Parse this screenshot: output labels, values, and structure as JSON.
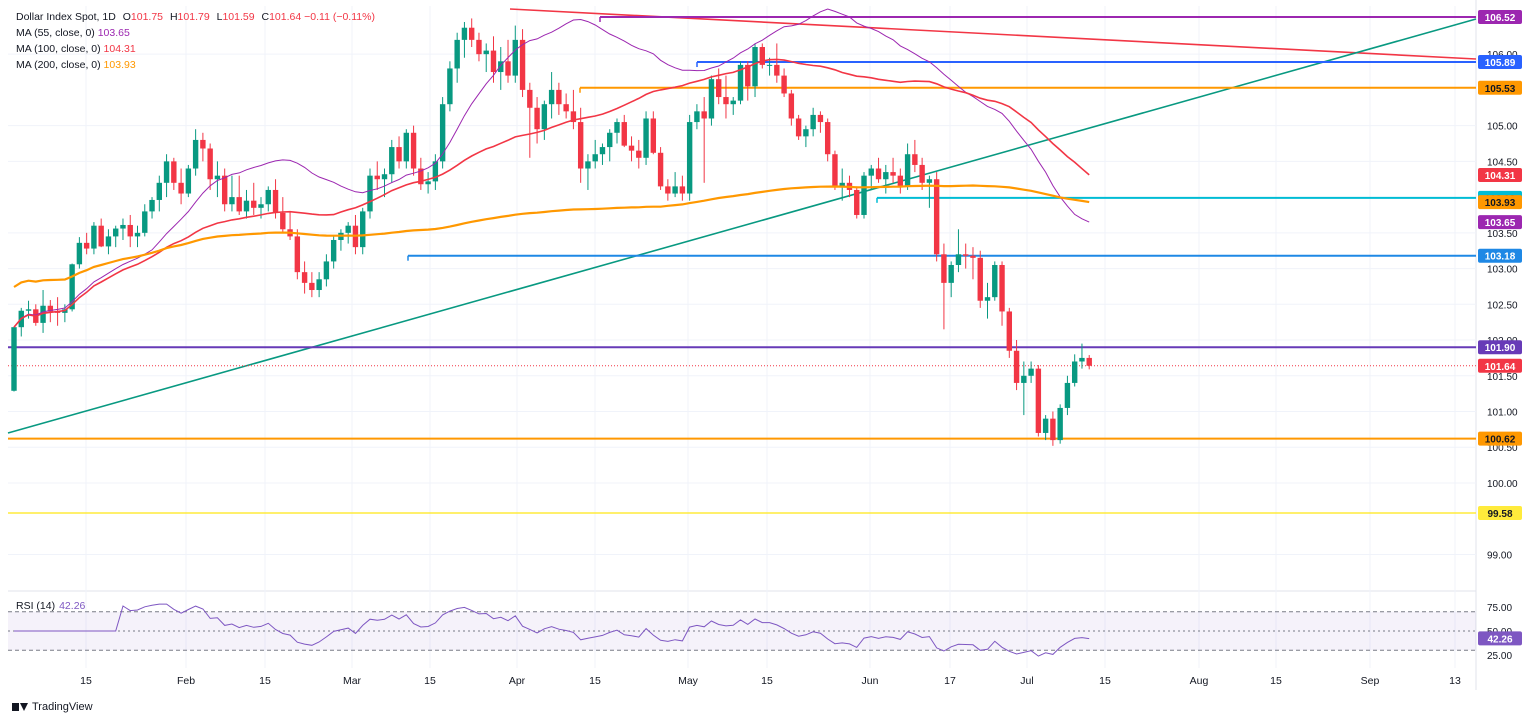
{
  "legend": {
    "symbol": "Dollar Index Spot, 1D",
    "open_label": "O",
    "open": "101.75",
    "high_label": "H",
    "high": "101.79",
    "low_label": "L",
    "low": "101.59",
    "close_label": "C",
    "close": "101.64",
    "change": "−0.11 (−0.11%)",
    "ma55": {
      "label": "MA (55, close, 0)",
      "value": "103.65",
      "color": "#9c27b0"
    },
    "ma100": {
      "label": "MA (100, close, 0)",
      "value": "104.31",
      "color": "#f23645"
    },
    "ma200": {
      "label": "MA (200, close, 0)",
      "value": "103.93",
      "color": "#ff9800"
    }
  },
  "rsi": {
    "label": "RSI (14)",
    "value": "42.26",
    "color": "#7e57c2"
  },
  "footer": {
    "brand": "TradingView"
  },
  "colors": {
    "up": "#089981",
    "down": "#f23645",
    "grid": "#f0f3fa",
    "axis_text": "#131722"
  },
  "chart_data": {
    "type": "candlestick",
    "title": "Dollar Index Spot, 1D",
    "ylim": [
      98.4,
      106.8
    ],
    "y_ticks": [
      "99.00",
      "100.00",
      "100.50",
      "101.00",
      "101.50",
      "102.00",
      "102.50",
      "103.00",
      "103.50",
      "104.50",
      "105.00",
      "106.00"
    ],
    "x_ticks": [
      "15",
      "Feb",
      "15",
      "Mar",
      "15",
      "Apr",
      "15",
      "May",
      "15",
      "Jun",
      "17",
      "Jul",
      "15",
      "Aug",
      "15",
      "Sep",
      "13"
    ],
    "date_range": [
      "2024-01-02",
      "2024-09-04"
    ],
    "candles_ohlc": [
      [
        101.29,
        102.18,
        101.28,
        102.18
      ],
      [
        102.18,
        102.45,
        102.05,
        102.41
      ],
      [
        102.41,
        102.55,
        102.3,
        102.43
      ],
      [
        102.43,
        102.5,
        102.2,
        102.24
      ],
      [
        102.24,
        102.7,
        102.1,
        102.48
      ],
      [
        102.48,
        102.56,
        102.25,
        102.4
      ],
      [
        102.4,
        102.6,
        102.2,
        102.38
      ],
      [
        102.38,
        102.5,
        102.25,
        102.43
      ],
      [
        102.43,
        103.07,
        102.4,
        103.06
      ],
      [
        103.06,
        103.44,
        103.0,
        103.36
      ],
      [
        103.36,
        103.5,
        103.2,
        103.28
      ],
      [
        103.28,
        103.65,
        103.2,
        103.6
      ],
      [
        103.6,
        103.7,
        103.3,
        103.31
      ],
      [
        103.31,
        103.55,
        103.2,
        103.45
      ],
      [
        103.45,
        103.6,
        103.3,
        103.56
      ],
      [
        103.56,
        103.7,
        103.4,
        103.61
      ],
      [
        103.61,
        103.75,
        103.3,
        103.45
      ],
      [
        103.45,
        103.6,
        103.3,
        103.5
      ],
      [
        103.5,
        103.9,
        103.45,
        103.8
      ],
      [
        103.8,
        104.0,
        103.7,
        103.96
      ],
      [
        103.96,
        104.3,
        103.8,
        104.2
      ],
      [
        104.2,
        104.6,
        104.0,
        104.5
      ],
      [
        104.5,
        104.55,
        104.1,
        104.2
      ],
      [
        104.2,
        104.4,
        103.9,
        104.05
      ],
      [
        104.05,
        104.45,
        104.0,
        104.4
      ],
      [
        104.4,
        104.95,
        104.3,
        104.8
      ],
      [
        104.8,
        104.9,
        104.5,
        104.68
      ],
      [
        104.68,
        104.75,
        104.1,
        104.25
      ],
      [
        104.25,
        104.5,
        104.0,
        104.3
      ],
      [
        104.3,
        104.4,
        103.8,
        103.9
      ],
      [
        103.9,
        104.3,
        103.8,
        104.0
      ],
      [
        104.0,
        104.3,
        103.75,
        103.8
      ],
      [
        103.8,
        104.1,
        103.7,
        103.95
      ],
      [
        103.95,
        104.2,
        103.75,
        103.85
      ],
      [
        103.85,
        104.0,
        103.7,
        103.9
      ],
      [
        103.9,
        104.15,
        103.8,
        104.1
      ],
      [
        104.1,
        104.25,
        103.7,
        103.78
      ],
      [
        103.78,
        104.0,
        103.5,
        103.55
      ],
      [
        103.55,
        103.8,
        103.4,
        103.45
      ],
      [
        103.45,
        103.55,
        102.85,
        102.95
      ],
      [
        102.95,
        103.1,
        102.65,
        102.8
      ],
      [
        102.8,
        102.95,
        102.6,
        102.7
      ],
      [
        102.7,
        102.95,
        102.6,
        102.85
      ],
      [
        102.85,
        103.2,
        102.75,
        103.1
      ],
      [
        103.1,
        103.45,
        103.0,
        103.4
      ],
      [
        103.4,
        103.55,
        103.25,
        103.5
      ],
      [
        103.5,
        103.65,
        103.35,
        103.6
      ],
      [
        103.6,
        103.75,
        103.2,
        103.3
      ],
      [
        103.3,
        103.85,
        103.2,
        103.8
      ],
      [
        103.8,
        104.4,
        103.7,
        104.3
      ],
      [
        104.3,
        104.5,
        104.1,
        104.25
      ],
      [
        104.25,
        104.4,
        104.0,
        104.32
      ],
      [
        104.32,
        104.8,
        104.2,
        104.7
      ],
      [
        104.7,
        104.85,
        104.4,
        104.5
      ],
      [
        104.5,
        104.95,
        104.4,
        104.9
      ],
      [
        104.9,
        105.0,
        104.3,
        104.4
      ],
      [
        104.4,
        104.55,
        104.1,
        104.18
      ],
      [
        104.18,
        104.35,
        104.05,
        104.22
      ],
      [
        104.22,
        104.6,
        104.1,
        104.5
      ],
      [
        104.5,
        105.4,
        104.4,
        105.3
      ],
      [
        105.3,
        105.9,
        105.2,
        105.8
      ],
      [
        105.8,
        106.3,
        105.6,
        106.2
      ],
      [
        106.2,
        106.45,
        105.95,
        106.37
      ],
      [
        106.37,
        106.5,
        106.1,
        106.2
      ],
      [
        106.2,
        106.3,
        105.9,
        106.0
      ],
      [
        106.0,
        106.15,
        105.75,
        106.05
      ],
      [
        106.05,
        106.25,
        105.6,
        105.75
      ],
      [
        105.75,
        106.1,
        105.5,
        105.9
      ],
      [
        105.9,
        106.2,
        105.6,
        105.7
      ],
      [
        105.7,
        106.4,
        105.6,
        106.2
      ],
      [
        106.2,
        106.35,
        105.4,
        105.5
      ],
      [
        105.5,
        105.6,
        104.55,
        105.25
      ],
      [
        105.25,
        105.4,
        104.75,
        104.95
      ],
      [
        104.95,
        105.35,
        104.8,
        105.3
      ],
      [
        105.3,
        105.75,
        105.1,
        105.5
      ],
      [
        105.5,
        105.6,
        105.15,
        105.3
      ],
      [
        105.3,
        105.45,
        105.1,
        105.2
      ],
      [
        105.2,
        105.5,
        104.95,
        105.05
      ],
      [
        105.05,
        105.25,
        104.2,
        104.4
      ],
      [
        104.4,
        104.6,
        104.1,
        104.5
      ],
      [
        104.5,
        104.8,
        104.4,
        104.6
      ],
      [
        104.6,
        104.75,
        104.45,
        104.7
      ],
      [
        104.7,
        104.95,
        104.5,
        104.9
      ],
      [
        104.9,
        105.1,
        104.75,
        105.05
      ],
      [
        105.05,
        105.15,
        104.7,
        104.72
      ],
      [
        104.72,
        104.85,
        104.5,
        104.65
      ],
      [
        104.65,
        104.8,
        104.4,
        104.55
      ],
      [
        104.55,
        105.2,
        104.45,
        105.1
      ],
      [
        105.1,
        105.2,
        104.6,
        104.62
      ],
      [
        104.62,
        104.7,
        104.1,
        104.15
      ],
      [
        104.15,
        104.25,
        103.95,
        104.05
      ],
      [
        104.05,
        104.35,
        104.0,
        104.15
      ],
      [
        104.15,
        104.3,
        103.95,
        104.05
      ],
      [
        104.05,
        105.15,
        103.95,
        105.05
      ],
      [
        105.05,
        105.3,
        104.95,
        105.2
      ],
      [
        105.2,
        105.4,
        104.2,
        105.1
      ],
      [
        105.1,
        105.7,
        105.0,
        105.65
      ],
      [
        105.65,
        105.8,
        105.3,
        105.4
      ],
      [
        105.4,
        105.7,
        105.1,
        105.3
      ],
      [
        105.3,
        105.4,
        105.15,
        105.35
      ],
      [
        105.35,
        105.9,
        105.3,
        105.85
      ],
      [
        105.85,
        105.9,
        105.35,
        105.55
      ],
      [
        105.55,
        106.15,
        105.4,
        106.1
      ],
      [
        106.1,
        106.15,
        105.8,
        105.85
      ],
      [
        105.85,
        105.95,
        105.7,
        105.85
      ],
      [
        105.85,
        106.15,
        105.6,
        105.7
      ],
      [
        105.7,
        105.8,
        105.4,
        105.45
      ],
      [
        105.45,
        105.5,
        105.0,
        105.1
      ],
      [
        105.1,
        105.15,
        104.8,
        104.85
      ],
      [
        104.85,
        105.0,
        104.7,
        104.95
      ],
      [
        104.95,
        105.25,
        104.85,
        105.15
      ],
      [
        105.15,
        105.2,
        104.9,
        105.05
      ],
      [
        105.05,
        105.1,
        104.5,
        104.6
      ],
      [
        104.6,
        104.65,
        104.1,
        104.15
      ],
      [
        104.15,
        104.4,
        103.95,
        104.2
      ],
      [
        104.2,
        104.3,
        104.0,
        104.1
      ],
      [
        104.1,
        104.15,
        103.7,
        103.75
      ],
      [
        103.75,
        104.35,
        103.7,
        104.3
      ],
      [
        104.3,
        104.45,
        104.1,
        104.4
      ],
      [
        104.4,
        104.55,
        104.2,
        104.25
      ],
      [
        104.25,
        104.45,
        104.05,
        104.35
      ],
      [
        104.35,
        104.55,
        104.2,
        104.3
      ],
      [
        104.3,
        104.4,
        104.05,
        104.15
      ],
      [
        104.15,
        104.75,
        104.1,
        104.6
      ],
      [
        104.6,
        104.8,
        104.35,
        104.45
      ],
      [
        104.45,
        104.55,
        104.1,
        104.2
      ],
      [
        104.2,
        104.3,
        103.85,
        104.25
      ],
      [
        104.25,
        104.35,
        103.1,
        103.2
      ],
      [
        103.2,
        103.35,
        102.15,
        102.8
      ],
      [
        102.8,
        103.1,
        102.6,
        103.05
      ],
      [
        103.05,
        103.55,
        102.95,
        103.2
      ],
      [
        103.2,
        103.35,
        103.0,
        103.18
      ],
      [
        103.18,
        103.3,
        102.85,
        103.15
      ],
      [
        103.15,
        103.25,
        102.45,
        102.55
      ],
      [
        102.55,
        102.8,
        102.3,
        102.6
      ],
      [
        102.6,
        103.1,
        102.55,
        103.05
      ],
      [
        103.05,
        103.1,
        102.2,
        102.4
      ],
      [
        102.4,
        102.45,
        101.75,
        101.85
      ],
      [
        101.85,
        102.0,
        101.3,
        101.4
      ],
      [
        101.4,
        101.7,
        100.95,
        101.5
      ],
      [
        101.5,
        101.7,
        101.4,
        101.6
      ],
      [
        101.6,
        101.65,
        100.65,
        100.7
      ],
      [
        100.7,
        100.95,
        100.6,
        100.9
      ],
      [
        100.9,
        101.0,
        100.52,
        100.6
      ],
      [
        100.6,
        101.1,
        100.55,
        101.05
      ],
      [
        101.05,
        101.5,
        100.95,
        101.4
      ],
      [
        101.4,
        101.8,
        101.35,
        101.7
      ],
      [
        101.7,
        101.95,
        101.6,
        101.75
      ],
      [
        101.75,
        101.79,
        101.59,
        101.64
      ]
    ],
    "moving_averages": [
      {
        "name": "MA (55, close, 0)",
        "value": 103.65,
        "color": "#9c27b0"
      },
      {
        "name": "MA (100, close, 0)",
        "value": 104.31,
        "color": "#f23645"
      },
      {
        "name": "MA (200, close, 0)",
        "value": 103.93,
        "color": "#ff9800"
      }
    ],
    "horizontal_levels": [
      {
        "value": 106.52,
        "color": "#9c27b0",
        "label": "106.52"
      },
      {
        "value": 105.89,
        "color": "#2962ff",
        "label": "105.89"
      },
      {
        "value": 105.53,
        "color": "#ff9800",
        "label": "105.53"
      },
      {
        "value": 103.99,
        "color": "#00bcd4",
        "label": "103.99"
      },
      {
        "value": 103.18,
        "color": "#1e88e5",
        "label": "103.18"
      },
      {
        "value": 101.9,
        "color": "#673ab7",
        "label": "101.90"
      },
      {
        "value": 100.62,
        "color": "#ff9800",
        "label": "100.62"
      },
      {
        "value": 99.58,
        "color": "#ffeb3b",
        "label": "99.58"
      }
    ],
    "price_tags": [
      {
        "value": 106.52,
        "label": "106.52",
        "bg": "#9c27b0",
        "fg": "#ffffff"
      },
      {
        "value": 105.89,
        "label": "105.89",
        "bg": "#2962ff",
        "fg": "#ffffff"
      },
      {
        "value": 105.53,
        "label": "105.53",
        "bg": "#ff9800",
        "fg": "#131722"
      },
      {
        "value": 104.31,
        "label": "104.31",
        "bg": "#f23645",
        "fg": "#ffffff"
      },
      {
        "value": 103.99,
        "label": "103.99",
        "bg": "#00bcd4",
        "fg": "#131722"
      },
      {
        "value": 103.93,
        "label": "103.93",
        "bg": "#ff9800",
        "fg": "#131722"
      },
      {
        "value": 103.65,
        "label": "103.65",
        "bg": "#9c27b0",
        "fg": "#ffffff"
      },
      {
        "value": 103.18,
        "label": "103.18",
        "bg": "#1e88e5",
        "fg": "#ffffff"
      },
      {
        "value": 101.9,
        "label": "101.90",
        "bg": "#673ab7",
        "fg": "#ffffff"
      },
      {
        "value": 101.64,
        "label": "101.64",
        "bg": "#f23645",
        "fg": "#ffffff"
      },
      {
        "value": 100.62,
        "label": "100.62",
        "bg": "#ff9800",
        "fg": "#131722"
      },
      {
        "value": 99.58,
        "label": "99.58",
        "bg": "#ffeb3b",
        "fg": "#131722"
      }
    ],
    "rsi_panel": {
      "ylim": [
        20,
        80
      ],
      "ticks": [
        "75.00",
        "50.00",
        "25.00"
      ],
      "overbought": 70,
      "oversold": 30,
      "mid": 50,
      "current": 42.26
    }
  }
}
